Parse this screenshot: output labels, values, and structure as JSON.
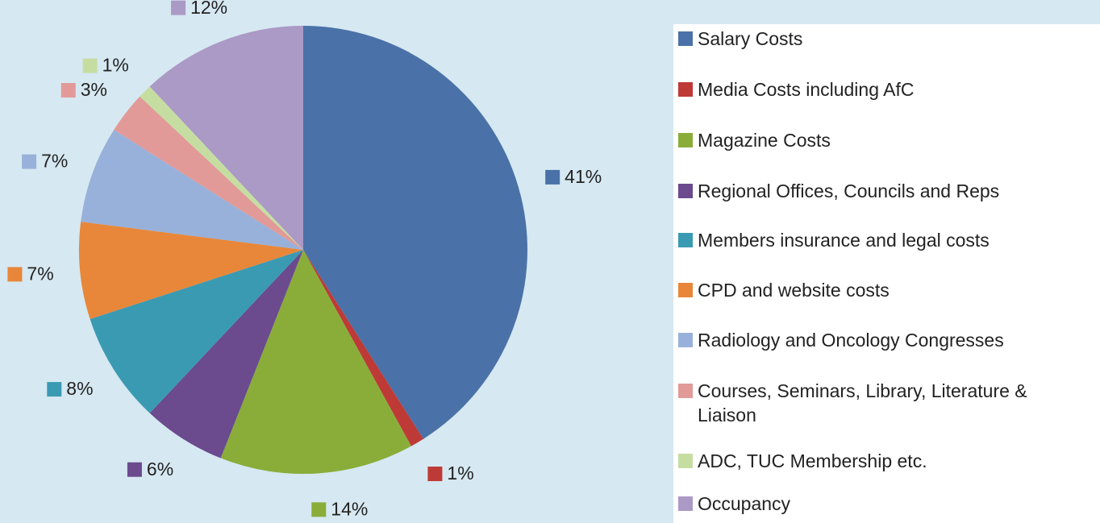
{
  "chart_data": {
    "type": "pie",
    "categories": [
      "Salary Costs",
      "Media Costs including AfC",
      "Magazine Costs",
      "Regional Offices, Councils and Reps",
      "Members insurance and legal costs",
      "CPD and website costs",
      "Radiology and Oncology Congresses",
      "Courses, Seminars, Library, Literature & Liaison",
      "ADC, TUC Membership etc.",
      "Occupancy"
    ],
    "values": [
      41,
      1,
      14,
      6,
      8,
      7,
      7,
      3,
      1,
      12
    ],
    "value_labels": [
      "41%",
      "1%",
      "14%",
      "6%",
      "8%",
      "7%",
      "7%",
      "3%",
      "1%",
      "12%"
    ],
    "colors": [
      "#4a72a8",
      "#be3a36",
      "#8aad3a",
      "#6b4a8e",
      "#3a9ab2",
      "#e8873a",
      "#98b1da",
      "#e29a98",
      "#c6dda2",
      "#ab99c6"
    ],
    "legend": "right"
  }
}
